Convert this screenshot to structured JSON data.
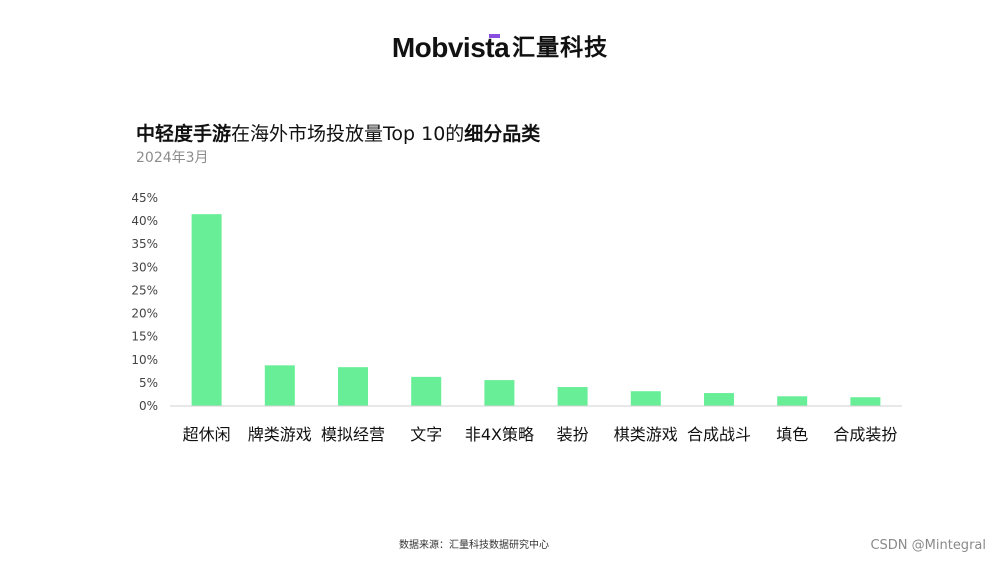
{
  "header": {
    "brand": "Mobvista",
    "brand_cn": "汇量科技"
  },
  "title": {
    "part1": "中轻度手游",
    "part2": "在海外市场投放量Top 10的",
    "part3": "细分品类",
    "subtitle": "2024年3月"
  },
  "colors": {
    "bar": "#67ee96",
    "axis": "#d0d0d0",
    "accent": "#8a4fe0"
  },
  "chart_data": {
    "type": "bar",
    "title": "中轻度手游在海外市场投放量Top 10的细分品类",
    "subtitle": "2024年3月",
    "categories": [
      "超休闲",
      "牌类游戏",
      "模拟经营",
      "文字",
      "非4X策略",
      "装扮",
      "棋类游戏",
      "合成战斗",
      "填色",
      "合成装扮"
    ],
    "values": [
      41.5,
      8.8,
      8.4,
      6.3,
      5.6,
      4.1,
      3.2,
      2.8,
      2.1,
      1.9
    ],
    "ylim": [
      0,
      45
    ],
    "yticks": [
      "0%",
      "5%",
      "10%",
      "15%",
      "20%",
      "25%",
      "30%",
      "35%",
      "40%",
      "45%"
    ],
    "xlabel": "",
    "ylabel": "",
    "grid": false,
    "legend": "none"
  },
  "footer": {
    "source": "数据来源：汇量科技数据研究中心",
    "watermark": "CSDN @Mintegral"
  }
}
